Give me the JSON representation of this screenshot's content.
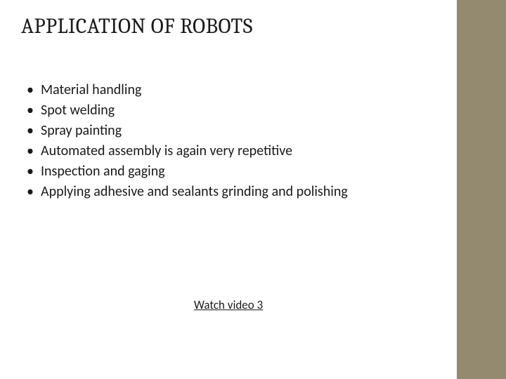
{
  "title": "APPLICATION OF ROBOTS",
  "bullets": {
    "0": "Material handling",
    "1": "Spot welding",
    "2": "Spray painting",
    "3": "Automated assembly is again very repetitive",
    "4": "Inspection and gaging",
    "5": "Applying adhesive and sealants grinding and polishing"
  },
  "link_text": "Watch video 3",
  "colors": {
    "sidebar": "#938a6f",
    "background": "#ffffff",
    "text": "#1a1a1a"
  },
  "title_fontsize": 30,
  "bullet_fontsize": 20,
  "link_fontsize": 17
}
